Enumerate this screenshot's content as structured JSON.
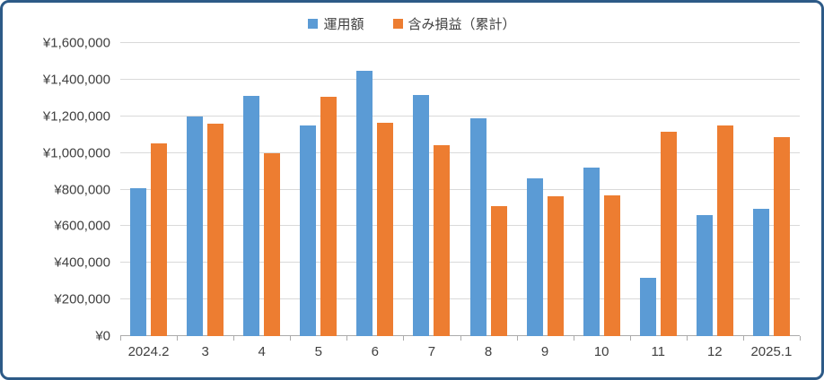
{
  "chart_data": {
    "type": "bar",
    "title": "",
    "categories": [
      "2024.2",
      "3",
      "4",
      "5",
      "6",
      "7",
      "8",
      "9",
      "10",
      "11",
      "12",
      "2025.1"
    ],
    "series": [
      {
        "name": "運用額",
        "color": "#5B9BD5",
        "values": [
          805000,
          1200000,
          1310000,
          1150000,
          1450000,
          1315000,
          1190000,
          860000,
          920000,
          320000,
          660000,
          695000
        ]
      },
      {
        "name": "含み損益（累計）",
        "color": "#ED7D31",
        "values": [
          1050000,
          1160000,
          1000000,
          1305000,
          1165000,
          1040000,
          710000,
          765000,
          770000,
          1115000,
          1150000,
          1085000
        ]
      }
    ],
    "ylim": [
      0,
      1600000
    ],
    "ytick_step": 200000,
    "ytick_labels": [
      "¥0",
      "¥200,000",
      "¥400,000",
      "¥600,000",
      "¥800,000",
      "¥1,000,000",
      "¥1,200,000",
      "¥1,400,000",
      "¥1,600,000"
    ],
    "grid": true,
    "legend_position": "top",
    "colors": {
      "frame_border": "#2D5A87",
      "gridline": "#D9D9D9",
      "axis_line": "#ABABAB",
      "text": "#404040"
    }
  }
}
